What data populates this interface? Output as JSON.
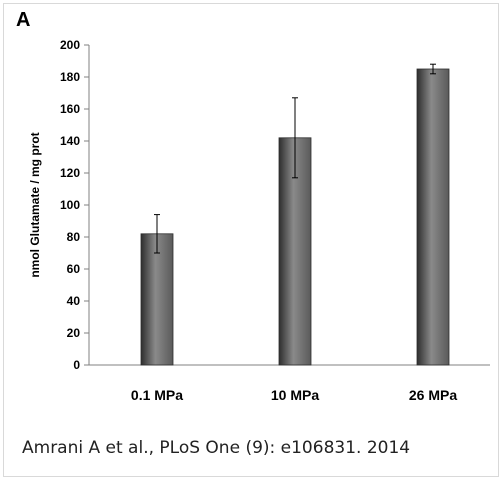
{
  "panel_label": "A",
  "citation": "Amrani A et al., PLoS One (9): e106831. 2014",
  "chart_data": {
    "type": "bar",
    "categories": [
      "0.1 MPa",
      "10 MPa",
      "26 MPa"
    ],
    "values": [
      82,
      142,
      185
    ],
    "error": [
      12,
      25,
      3
    ],
    "ylabel": "nmol Glutamate / mg prot",
    "xlabel": "",
    "ylim": [
      0,
      200
    ],
    "yticks": [
      0,
      20,
      40,
      60,
      80,
      100,
      120,
      140,
      160,
      180,
      200
    ],
    "grid": false,
    "legend": "none",
    "colors": {
      "bar": "#5a5a5a",
      "bar_edge": "#2e2e2e",
      "bar_highlight": "#8a8a8a"
    }
  }
}
